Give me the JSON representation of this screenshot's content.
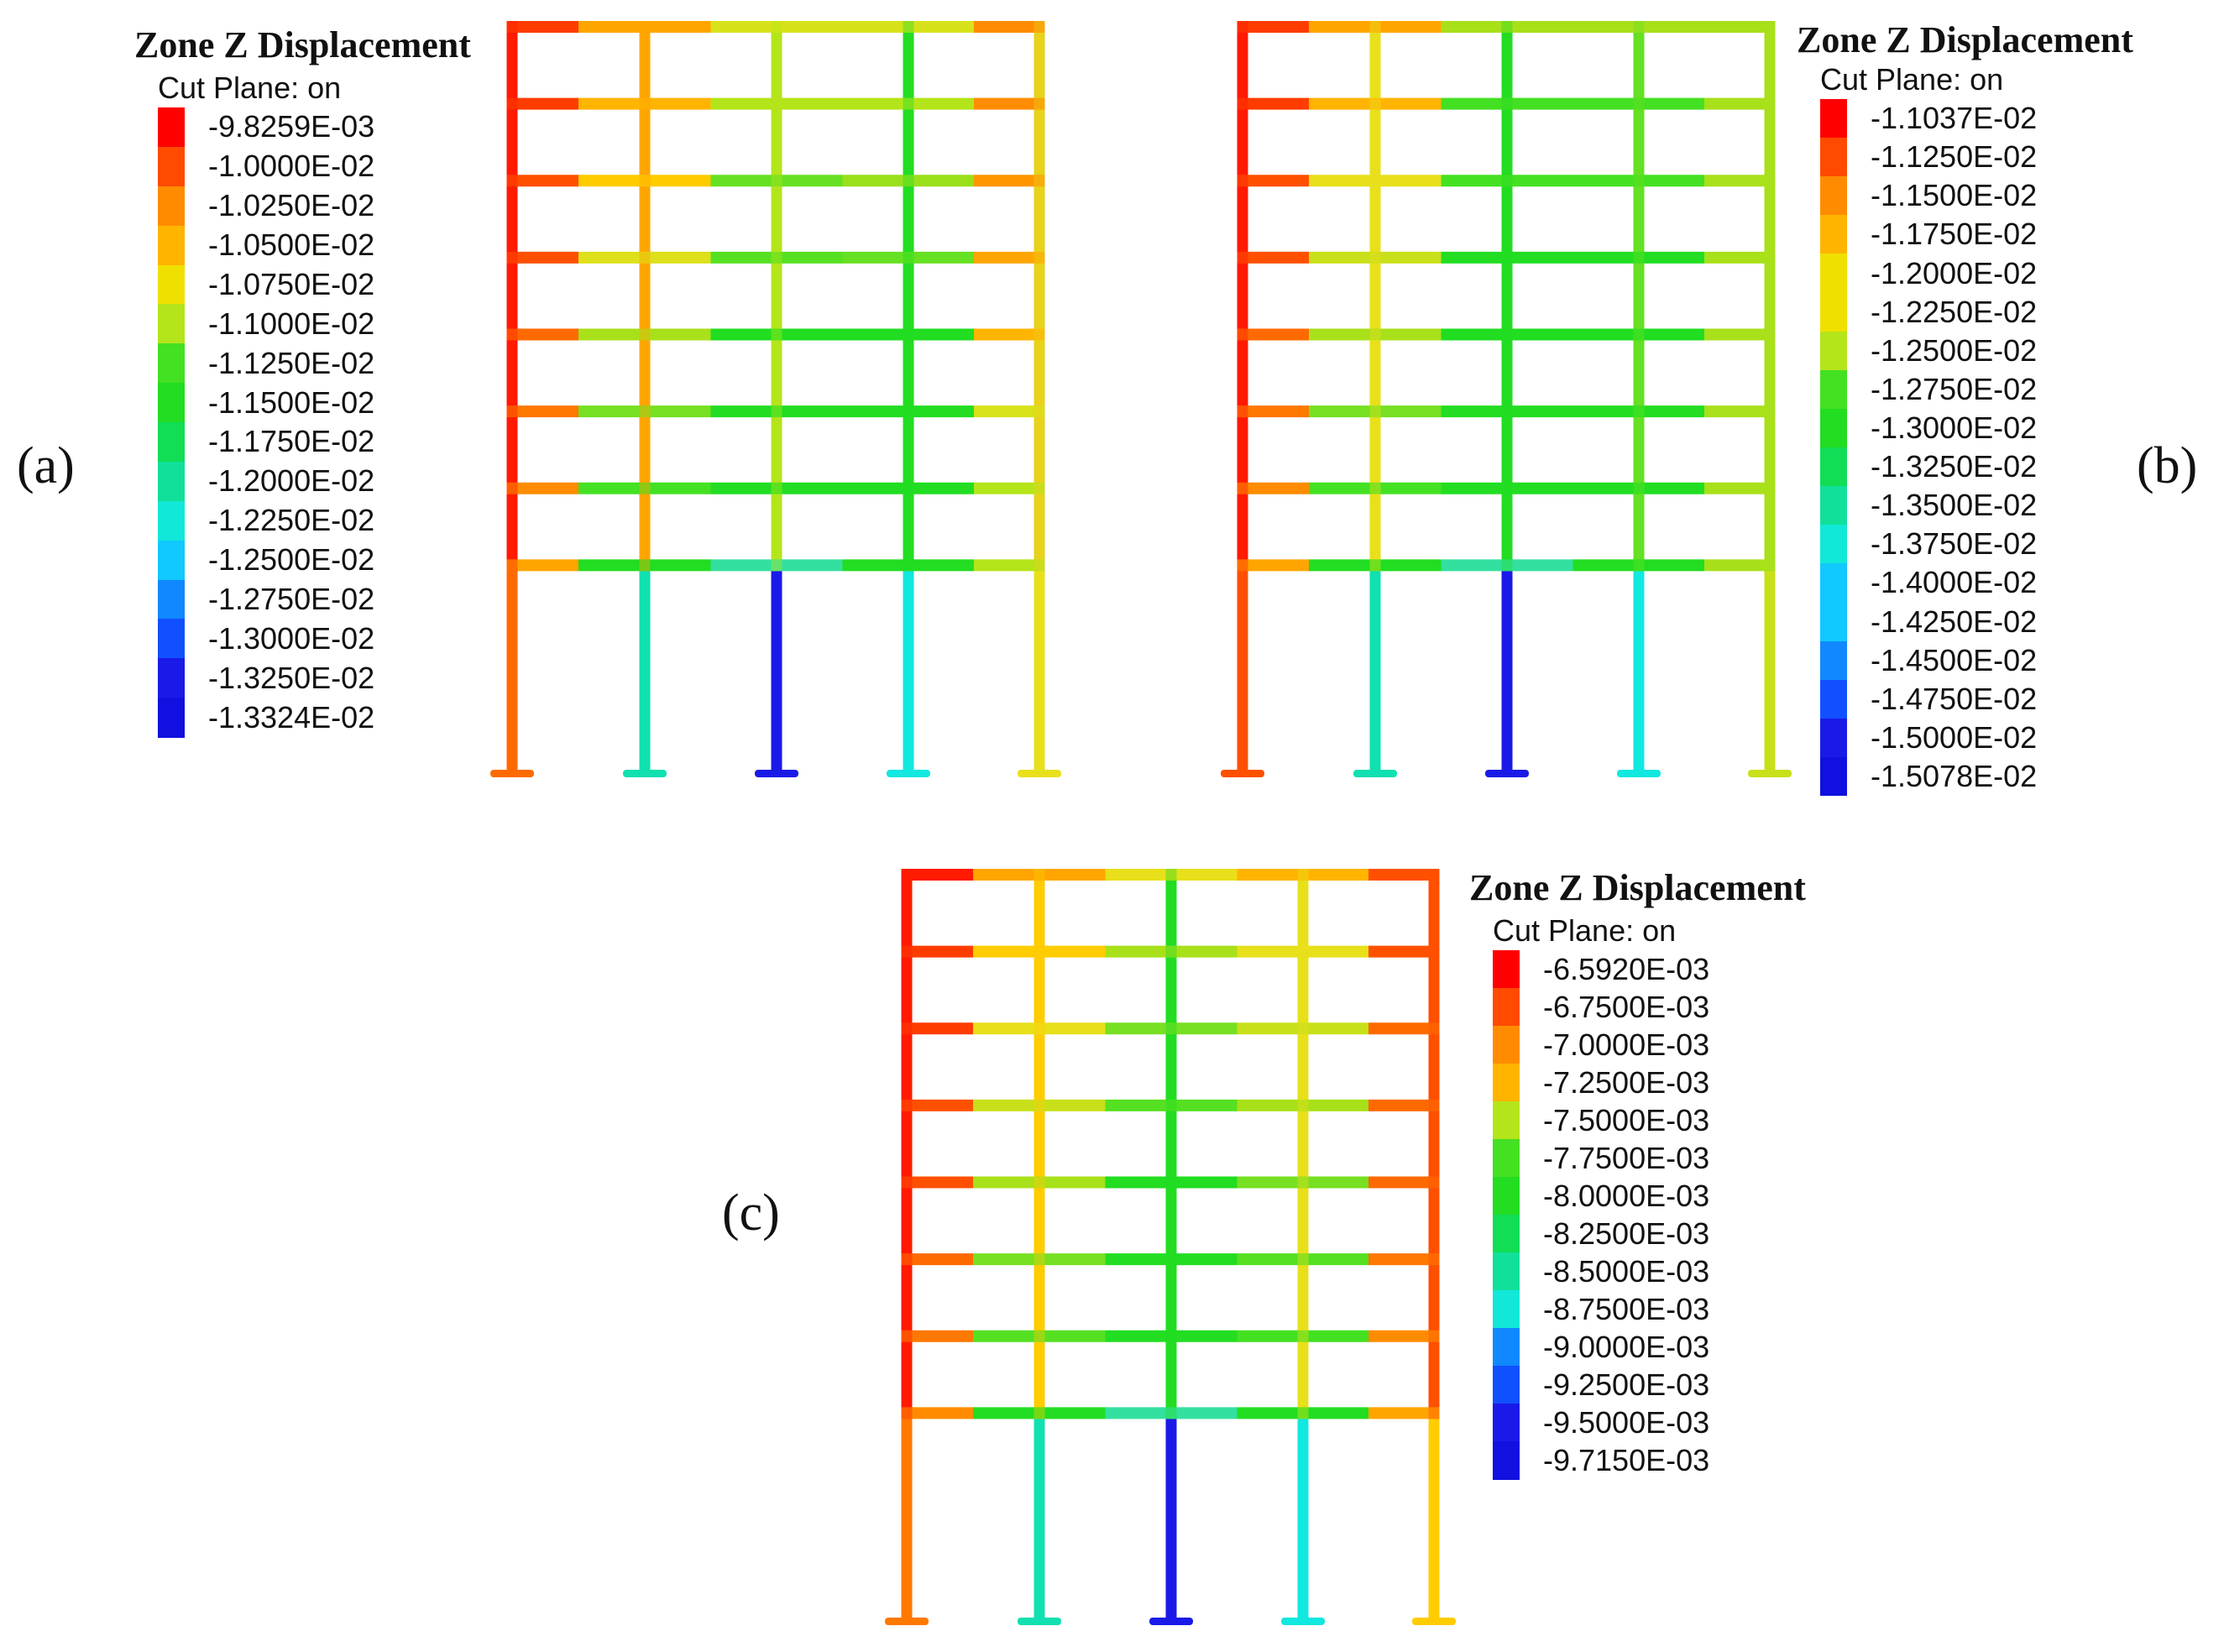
{
  "figure": {
    "panels": [
      {
        "id": "a",
        "label": "(a)",
        "legend": {
          "title": "Zone Z Displacement",
          "subtitle": "Cut Plane: on",
          "values": [
            "-9.8259E-03",
            "-1.0000E-02",
            "-1.0250E-02",
            "-1.0500E-02",
            "-1.0750E-02",
            "-1.1000E-02",
            "-1.1250E-02",
            "-1.1500E-02",
            "-1.1750E-02",
            "-1.2000E-02",
            "-1.2250E-02",
            "-1.2500E-02",
            "-1.2750E-02",
            "-1.3000E-02",
            "-1.3250E-02",
            "-1.3324E-02"
          ]
        },
        "columns": [
          "#ff1a00",
          "#ffa500",
          "#b4e51a",
          "#22dd22",
          "#e8d21a"
        ],
        "column_bases": [
          "#ff6a00",
          "#11e0b0",
          "#1a1ae8",
          "#11e8e0",
          "#e8e01a"
        ],
        "beam_rows": [
          [
            "#ff3c00",
            "#ffa500",
            "#d8e21a",
            "#d8e21a",
            "#ff8c00"
          ],
          [
            "#ff3c00",
            "#ffb400",
            "#b4e51a",
            "#b4e51a",
            "#ff8c00"
          ],
          [
            "#ff5000",
            "#ffcc00",
            "#66e022",
            "#99e01a",
            "#ff9600"
          ],
          [
            "#ff5000",
            "#dde01a",
            "#55e022",
            "#66e022",
            "#ffa500"
          ],
          [
            "#ff6a00",
            "#a8e01a",
            "#22dd22",
            "#22dd22",
            "#ffb400"
          ],
          [
            "#ff7800",
            "#77e022",
            "#22dd22",
            "#22dd22",
            "#d8e21a"
          ],
          [
            "#ff8c00",
            "#44e022",
            "#22dd22",
            "#22dd22",
            "#b4e51a"
          ],
          [
            "#ffa500",
            "#22dd22",
            "#33e0a0",
            "#22dd22",
            "#b4e51a"
          ]
        ]
      },
      {
        "id": "b",
        "label": "(b)",
        "legend": {
          "title": "Zone Z Displacement",
          "subtitle": "Cut Plane: on",
          "values": [
            "-1.1037E-02",
            "-1.1250E-02",
            "-1.1500E-02",
            "-1.1750E-02",
            "-1.2000E-02",
            "-1.2250E-02",
            "-1.2500E-02",
            "-1.2750E-02",
            "-1.3000E-02",
            "-1.3250E-02",
            "-1.3500E-02",
            "-1.3750E-02",
            "-1.4000E-02",
            "-1.4250E-02",
            "-1.4500E-02",
            "-1.4750E-02",
            "-1.5000E-02",
            "-1.5078E-02"
          ]
        },
        "columns": [
          "#ff1a00",
          "#e8e01a",
          "#22dd22",
          "#66e022",
          "#a8e01a"
        ],
        "column_bases": [
          "#ff5000",
          "#11e0b0",
          "#1a1ae8",
          "#11e8e0",
          "#c8e01a"
        ],
        "beam_rows": [
          [
            "#ff3c00",
            "#ffa500",
            "#a8e01a",
            "#a8e01a",
            "#a8e01a"
          ],
          [
            "#ff3c00",
            "#ffb400",
            "#44e022",
            "#44e022",
            "#a8e01a"
          ],
          [
            "#ff5000",
            "#e8e01a",
            "#44e022",
            "#44e022",
            "#a8e01a"
          ],
          [
            "#ff5000",
            "#c8e01a",
            "#22dd22",
            "#22dd22",
            "#a8e01a"
          ],
          [
            "#ff6a00",
            "#a8e01a",
            "#22dd22",
            "#22dd22",
            "#a8e01a"
          ],
          [
            "#ff7800",
            "#77e022",
            "#22dd22",
            "#22dd22",
            "#a8e01a"
          ],
          [
            "#ff8c00",
            "#44e022",
            "#22dd22",
            "#22dd22",
            "#a8e01a"
          ],
          [
            "#ffa500",
            "#22dd22",
            "#33e0a0",
            "#22dd22",
            "#a8e01a"
          ]
        ]
      },
      {
        "id": "c",
        "label": "(c)",
        "legend": {
          "title": "Zone Z Displacement",
          "subtitle": "Cut Plane: on",
          "values": [
            "-6.5920E-03",
            "-6.7500E-03",
            "-7.0000E-03",
            "-7.2500E-03",
            "-7.5000E-03",
            "-7.7500E-03",
            "-8.0000E-03",
            "-8.2500E-03",
            "-8.5000E-03",
            "-8.7500E-03",
            "-9.0000E-03",
            "-9.2500E-03",
            "-9.5000E-03",
            "-9.7150E-03"
          ]
        },
        "columns": [
          "#ff1a00",
          "#ffcc00",
          "#22dd22",
          "#e8e01a",
          "#ff5000"
        ],
        "column_bases": [
          "#ff7800",
          "#11e0b0",
          "#1a1ae8",
          "#11e8e0",
          "#ffcc00"
        ],
        "beam_rows": [
          [
            "#ff1a00",
            "#ffa500",
            "#e8e01a",
            "#ffb400",
            "#ff5000"
          ],
          [
            "#ff3c00",
            "#ffcc00",
            "#a8e01a",
            "#e8e01a",
            "#ff5000"
          ],
          [
            "#ff3c00",
            "#e8e01a",
            "#77e022",
            "#c8e01a",
            "#ff6a00"
          ],
          [
            "#ff5000",
            "#c8e01a",
            "#55e022",
            "#a8e01a",
            "#ff6a00"
          ],
          [
            "#ff5000",
            "#a8e01a",
            "#22dd22",
            "#77e022",
            "#ff6a00"
          ],
          [
            "#ff6a00",
            "#77e022",
            "#22dd22",
            "#55e022",
            "#ff7800"
          ],
          [
            "#ff7800",
            "#55e022",
            "#22dd22",
            "#44e022",
            "#ff8c00"
          ],
          [
            "#ff8c00",
            "#22dd22",
            "#33e0a0",
            "#22dd22",
            "#ffa500"
          ]
        ]
      }
    ]
  }
}
